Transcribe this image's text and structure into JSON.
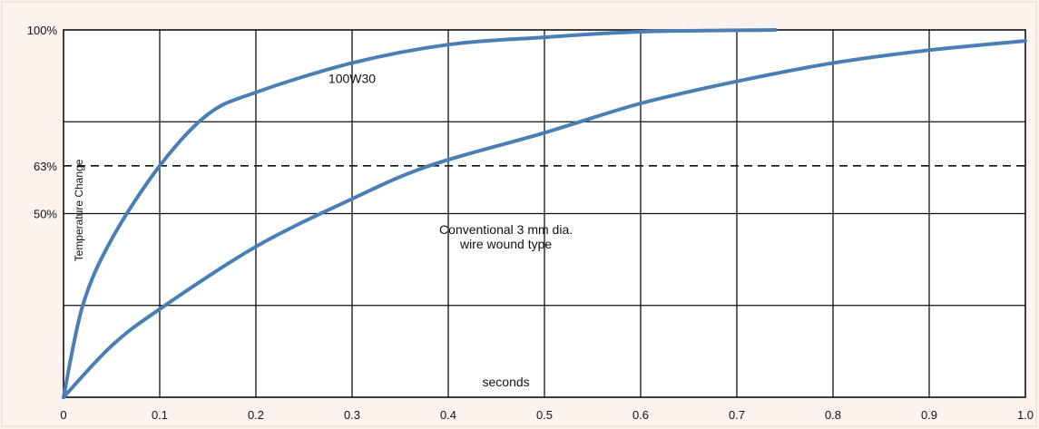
{
  "chart_data": {
    "type": "line",
    "title": "",
    "xlabel": "seconds",
    "ylabel": "Temperature Change",
    "xlim": [
      0,
      1.0
    ],
    "ylim": [
      0,
      100
    ],
    "grid": true,
    "x_ticks": [
      0,
      0.1,
      0.2,
      0.3,
      0.4,
      0.5,
      0.6,
      0.7,
      0.8,
      0.9,
      1.0
    ],
    "x_tick_labels": [
      "0",
      "0.1",
      "0.2",
      "0.3",
      "0.4",
      "0.5",
      "0.6",
      "0.7",
      "0.8",
      "0.9",
      "1.0"
    ],
    "y_grid_values": [
      25,
      50,
      75,
      100
    ],
    "y_tick_values": [
      50,
      63,
      100
    ],
    "y_tick_labels": [
      "50%",
      "63%",
      "100%"
    ],
    "reference_line": {
      "y": 63,
      "style": "dashed"
    },
    "series": [
      {
        "name": "100W30",
        "color": "#4a7fb5",
        "x": [
          0,
          0.02,
          0.05,
          0.1,
          0.15,
          0.2,
          0.3,
          0.4,
          0.5,
          0.6,
          0.74
        ],
        "y": [
          0,
          25,
          43,
          63,
          77,
          83,
          91,
          96,
          98,
          99.5,
          100
        ]
      },
      {
        "name": "Conventional 3 mm dia.\nwire wound type",
        "color": "#4a7fb5",
        "x": [
          0,
          0.05,
          0.1,
          0.2,
          0.3,
          0.38,
          0.5,
          0.6,
          0.7,
          0.8,
          0.9,
          1.0
        ],
        "y": [
          0,
          14,
          24,
          41,
          54,
          63,
          72,
          80,
          86,
          91,
          94.5,
          97
        ]
      }
    ],
    "annotations": [
      {
        "text": "100W30",
        "x": 0.3,
        "y": 85.5
      },
      {
        "text": "Conventional 3 mm dia.",
        "x": 0.46,
        "y": 44.5
      },
      {
        "text": "wire wound type",
        "x": 0.46,
        "y": 40.5
      },
      {
        "text": "seconds",
        "x": 0.46,
        "y": 3
      }
    ]
  }
}
